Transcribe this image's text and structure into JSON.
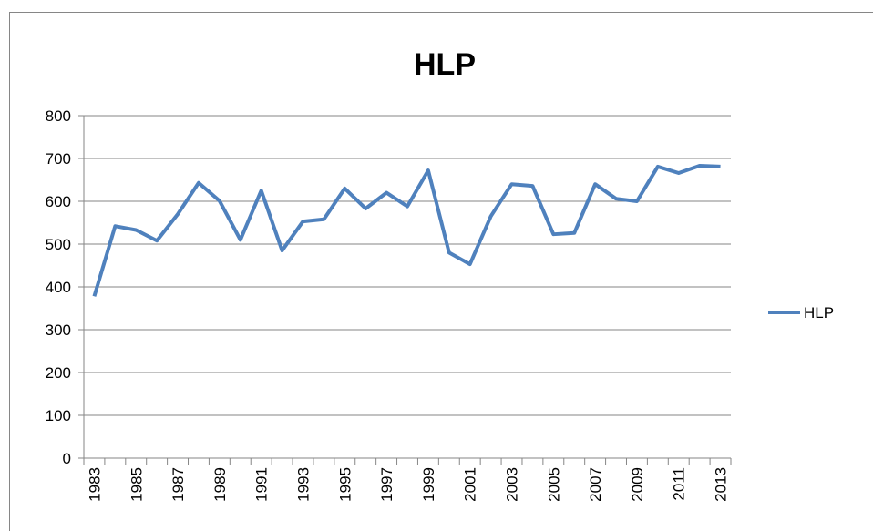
{
  "chart_data": {
    "type": "line",
    "title": "HLP",
    "categories": [
      "1983",
      null,
      "1985",
      null,
      "1987",
      null,
      "1989",
      null,
      "1991",
      null,
      "1993",
      null,
      "1995",
      null,
      "1997",
      null,
      "1999",
      null,
      "2001",
      null,
      "2003",
      null,
      "2005",
      null,
      "2007",
      null,
      "2009",
      null,
      "2011",
      null,
      "2013"
    ],
    "series": [
      {
        "name": "HLP",
        "color": "#4f81bd",
        "values": [
          378,
          542,
          533,
          508,
          570,
          643,
          601,
          510,
          625,
          485,
          553,
          558,
          630,
          583,
          620,
          588,
          672,
          480,
          453,
          565,
          640,
          636,
          523,
          526,
          640,
          606,
          600,
          681,
          666,
          683,
          681
        ]
      }
    ],
    "ylim": [
      0,
      800
    ],
    "yticks": [
      0,
      100,
      200,
      300,
      400,
      500,
      600,
      700,
      800
    ],
    "grid": true,
    "legend": "right"
  }
}
